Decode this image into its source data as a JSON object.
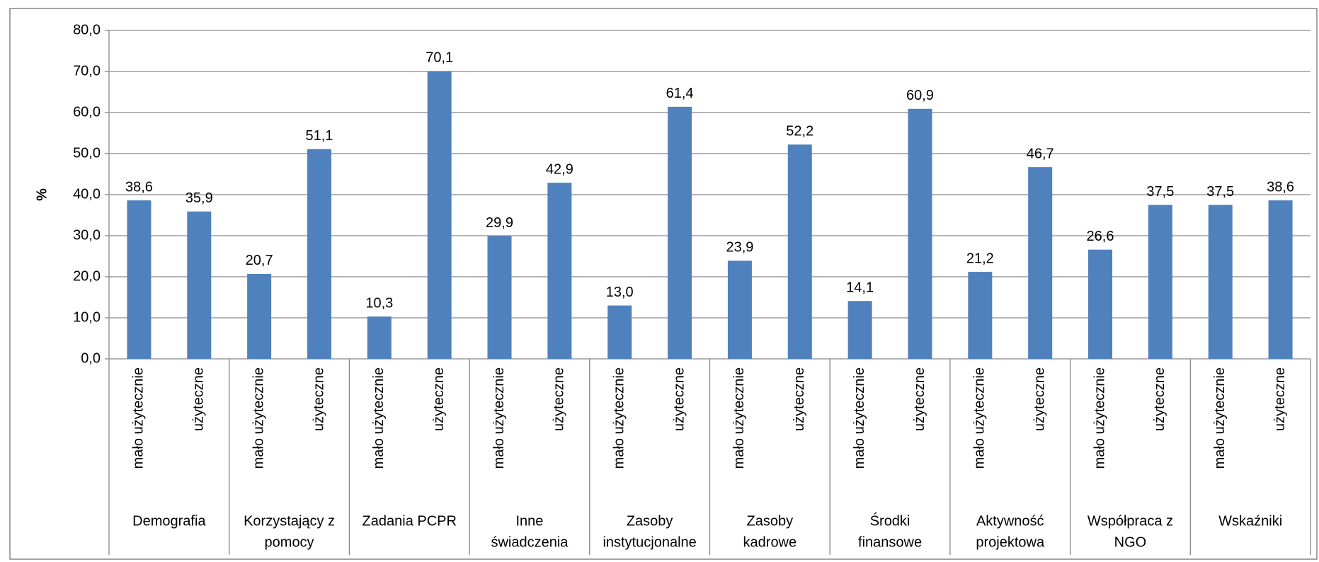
{
  "chart_data": {
    "type": "bar",
    "y_label": "%",
    "categories": [
      "mało użytecznie",
      "użyteczne",
      "mało użytecznie",
      "użyteczne",
      "mało użytecznie",
      "użyteczne",
      "mało użytecznie",
      "użyteczne",
      "mało użytecznie",
      "użyteczne",
      "mało użytecznie",
      "użyteczne",
      "mało użytecznie",
      "użyteczne",
      "mało użytecznie",
      "użyteczne",
      "mało użytecznie",
      "użyteczne",
      "mało użytecznie",
      "użyteczne"
    ],
    "groups": [
      [
        "Demografia"
      ],
      [
        "Korzystający z",
        "pomocy"
      ],
      [
        "Zadania PCPR"
      ],
      [
        "Inne",
        "świadczenia"
      ],
      [
        "Zasoby",
        "instytucjonalne"
      ],
      [
        "Zasoby",
        "kadrowe"
      ],
      [
        "Środki",
        "finansowe"
      ],
      [
        "Aktywność",
        "projektowa"
      ],
      [
        "Współpraca z",
        "NGO"
      ],
      [
        "Wskaźniki"
      ]
    ],
    "values": [
      38.6,
      35.9,
      20.7,
      51.1,
      10.3,
      70.1,
      29.9,
      42.9,
      13.0,
      61.4,
      23.9,
      52.2,
      14.1,
      60.9,
      21.2,
      46.7,
      26.6,
      37.5,
      37.5,
      38.6
    ],
    "value_labels": [
      "38,6",
      "35,9",
      "20,7",
      "51,1",
      "10,3",
      "70,1",
      "29,9",
      "42,9",
      "13,0",
      "61,4",
      "23,9",
      "52,2",
      "14,1",
      "60,9",
      "21,2",
      "46,7",
      "26,6",
      "37,5",
      "37,5",
      "38,6"
    ],
    "color": "#4f81bd",
    "ylim": [
      0,
      80
    ],
    "yticks": [
      {
        "value": 0,
        "label": "0,0"
      },
      {
        "value": 10,
        "label": "10,0"
      },
      {
        "value": 20,
        "label": "20,0"
      },
      {
        "value": 30,
        "label": "30,0"
      },
      {
        "value": 40,
        "label": "40,0"
      },
      {
        "value": 50,
        "label": "50,0"
      },
      {
        "value": 60,
        "label": "60,0"
      },
      {
        "value": 70,
        "label": "70,0"
      },
      {
        "value": 80,
        "label": "80,0"
      }
    ],
    "grid": true
  }
}
